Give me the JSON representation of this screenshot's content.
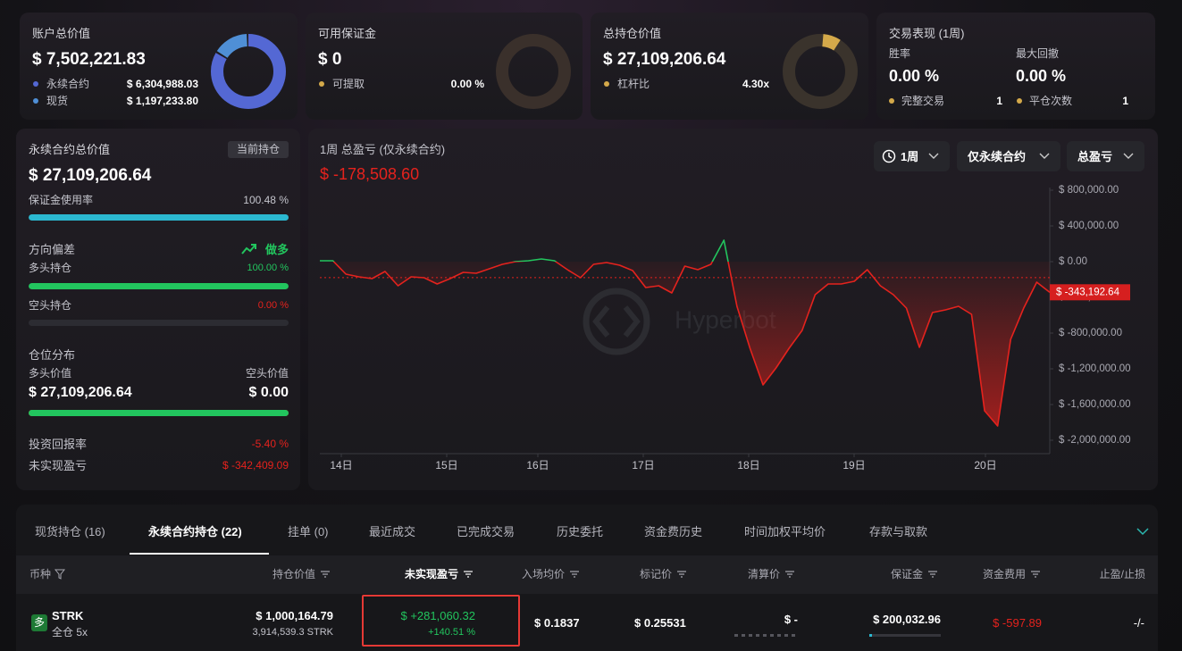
{
  "account": {
    "title": "账户总价值",
    "total": "$ 7,502,221.83",
    "items": [
      {
        "name": "永续合约",
        "value": {
          "value": 6304988.03,
          "label": "$ 6,304,988.03"
        },
        "color": "#5468d4"
      },
      {
        "name": "现货",
        "value": {
          "value": 1197233.8,
          "label": "$ 1,197,233.80"
        },
        "color": "#4f8fd6"
      }
    ]
  },
  "margin": {
    "title": "可用保证金",
    "value": "$ 0",
    "item": "可提取",
    "item_value": "0.00 %"
  },
  "position": {
    "title": "总持仓价值",
    "value": "$ 27,109,206.64",
    "item": "杠杆比",
    "item_value": "4.30x"
  },
  "performance": {
    "title": "交易表现 (1周)",
    "win_rate_label": "胜率",
    "win_rate": "0.00 %",
    "drawdown_label": "最大回撤",
    "drawdown": "0.00 %",
    "trades_label": "完整交易",
    "trades": "1",
    "closes_label": "平仓次数",
    "closes": "1"
  },
  "perp": {
    "title": "永续合约总价值",
    "button": "当前持仓",
    "value": "$ 27,109,206.64",
    "margin_usage_label": "保证金使用率",
    "margin_usage": {
      "value": 100.48,
      "label": "100.48 %"
    },
    "bias_label": "方向偏差",
    "bias": "做多",
    "long_label": "多头持仓",
    "long": {
      "value": 100,
      "label": "100.00 %"
    },
    "short_label": "空头持仓",
    "short": {
      "value": 0,
      "label": "0.00 %"
    },
    "distribution_label": "仓位分布",
    "long_value_label": "多头价值",
    "short_value_label": "空头价值",
    "long_value": {
      "value": 27109206.64,
      "label": "$ 27,109,206.64"
    },
    "short_value": {
      "value": 0,
      "label": "$ 0.00"
    },
    "roi_label": "投资回报率",
    "roi": "-5.40 %",
    "upnl_label": "未实现盈亏",
    "upnl": "$ -342,409.09"
  },
  "chart_data": {
    "type": "line",
    "title": "1周 总盈亏 (仅永续合约)",
    "total": {
      "value": -178508.6,
      "label": "$ -178,508.60"
    },
    "controls": [
      "1周",
      "仅永续合约",
      "总盈亏"
    ],
    "watermark": "Hyperbot",
    "values": [
      10000,
      10000,
      -140000,
      -170000,
      -190000,
      -110000,
      -270000,
      -170000,
      -180000,
      -250000,
      -190000,
      -120000,
      -130000,
      -80000,
      -30000,
      0,
      10000,
      30000,
      10000,
      -90000,
      -180000,
      -30000,
      -10000,
      -40000,
      -100000,
      -290000,
      -270000,
      -350000,
      -50000,
      -90000,
      -30000,
      240000,
      -500000,
      -970000,
      -1380000,
      -1190000,
      -970000,
      -770000,
      -370000,
      -250000,
      -250000,
      -220000,
      -90000,
      -270000,
      -370000,
      -520000,
      -960000,
      -570000,
      -540000,
      -500000,
      -590000,
      -1670000,
      -1840000,
      -870000,
      -520000,
      -230000,
      -343192.64
    ],
    "last_value_label": "$ -343,192.64",
    "x_labels": [
      "14日",
      "15日",
      "16日",
      "17日",
      "18日",
      "19日",
      "20日"
    ],
    "ylim": [
      -2150000,
      830000
    ],
    "yticks": [
      {
        "value": 800000,
        "label": "$ 800,000.00"
      },
      {
        "value": 400000,
        "label": "$ 400,000.00"
      },
      {
        "value": 0,
        "label": "$ 0.00"
      },
      {
        "value": -400000,
        "label": "$ -400,000.00"
      },
      {
        "value": -800000,
        "label": "$ -800,000.00"
      },
      {
        "value": -1200000,
        "label": "$ -1,200,000.00"
      },
      {
        "value": -1600000,
        "label": "$ -1,600,000.00"
      },
      {
        "value": -2000000,
        "label": "$ -2,000,000.00"
      }
    ],
    "colors": {
      "up": "#22c55e",
      "down": "#e5221d"
    }
  },
  "tabs": [
    "现货持仓 (16)",
    "永续合约持仓 (22)",
    "挂单 (0)",
    "最近成交",
    "已完成交易",
    "历史委托",
    "资金费历史",
    "时间加权平均价",
    "存款与取款"
  ],
  "active_tab": 1,
  "table": {
    "columns": [
      "币种",
      "持仓价值",
      "未实现盈亏",
      "入场均价",
      "标记价",
      "清算价",
      "保证金",
      "资金费用",
      "止盈/止损"
    ],
    "rows": [
      {
        "side": "多",
        "coin": "STRK",
        "mode": "全仓 5x",
        "value": "$ 1,000,164.79",
        "size": "3,914,539.3 STRK",
        "pnl": "$ +281,060.32",
        "pnl_pct": "+140.51 %",
        "entry": "$ 0.1837",
        "mark": "$ 0.25531",
        "liq": "$ -",
        "margin": "$ 200,032.96",
        "funding": "$ -597.89",
        "tpsl": "-/-"
      }
    ]
  }
}
